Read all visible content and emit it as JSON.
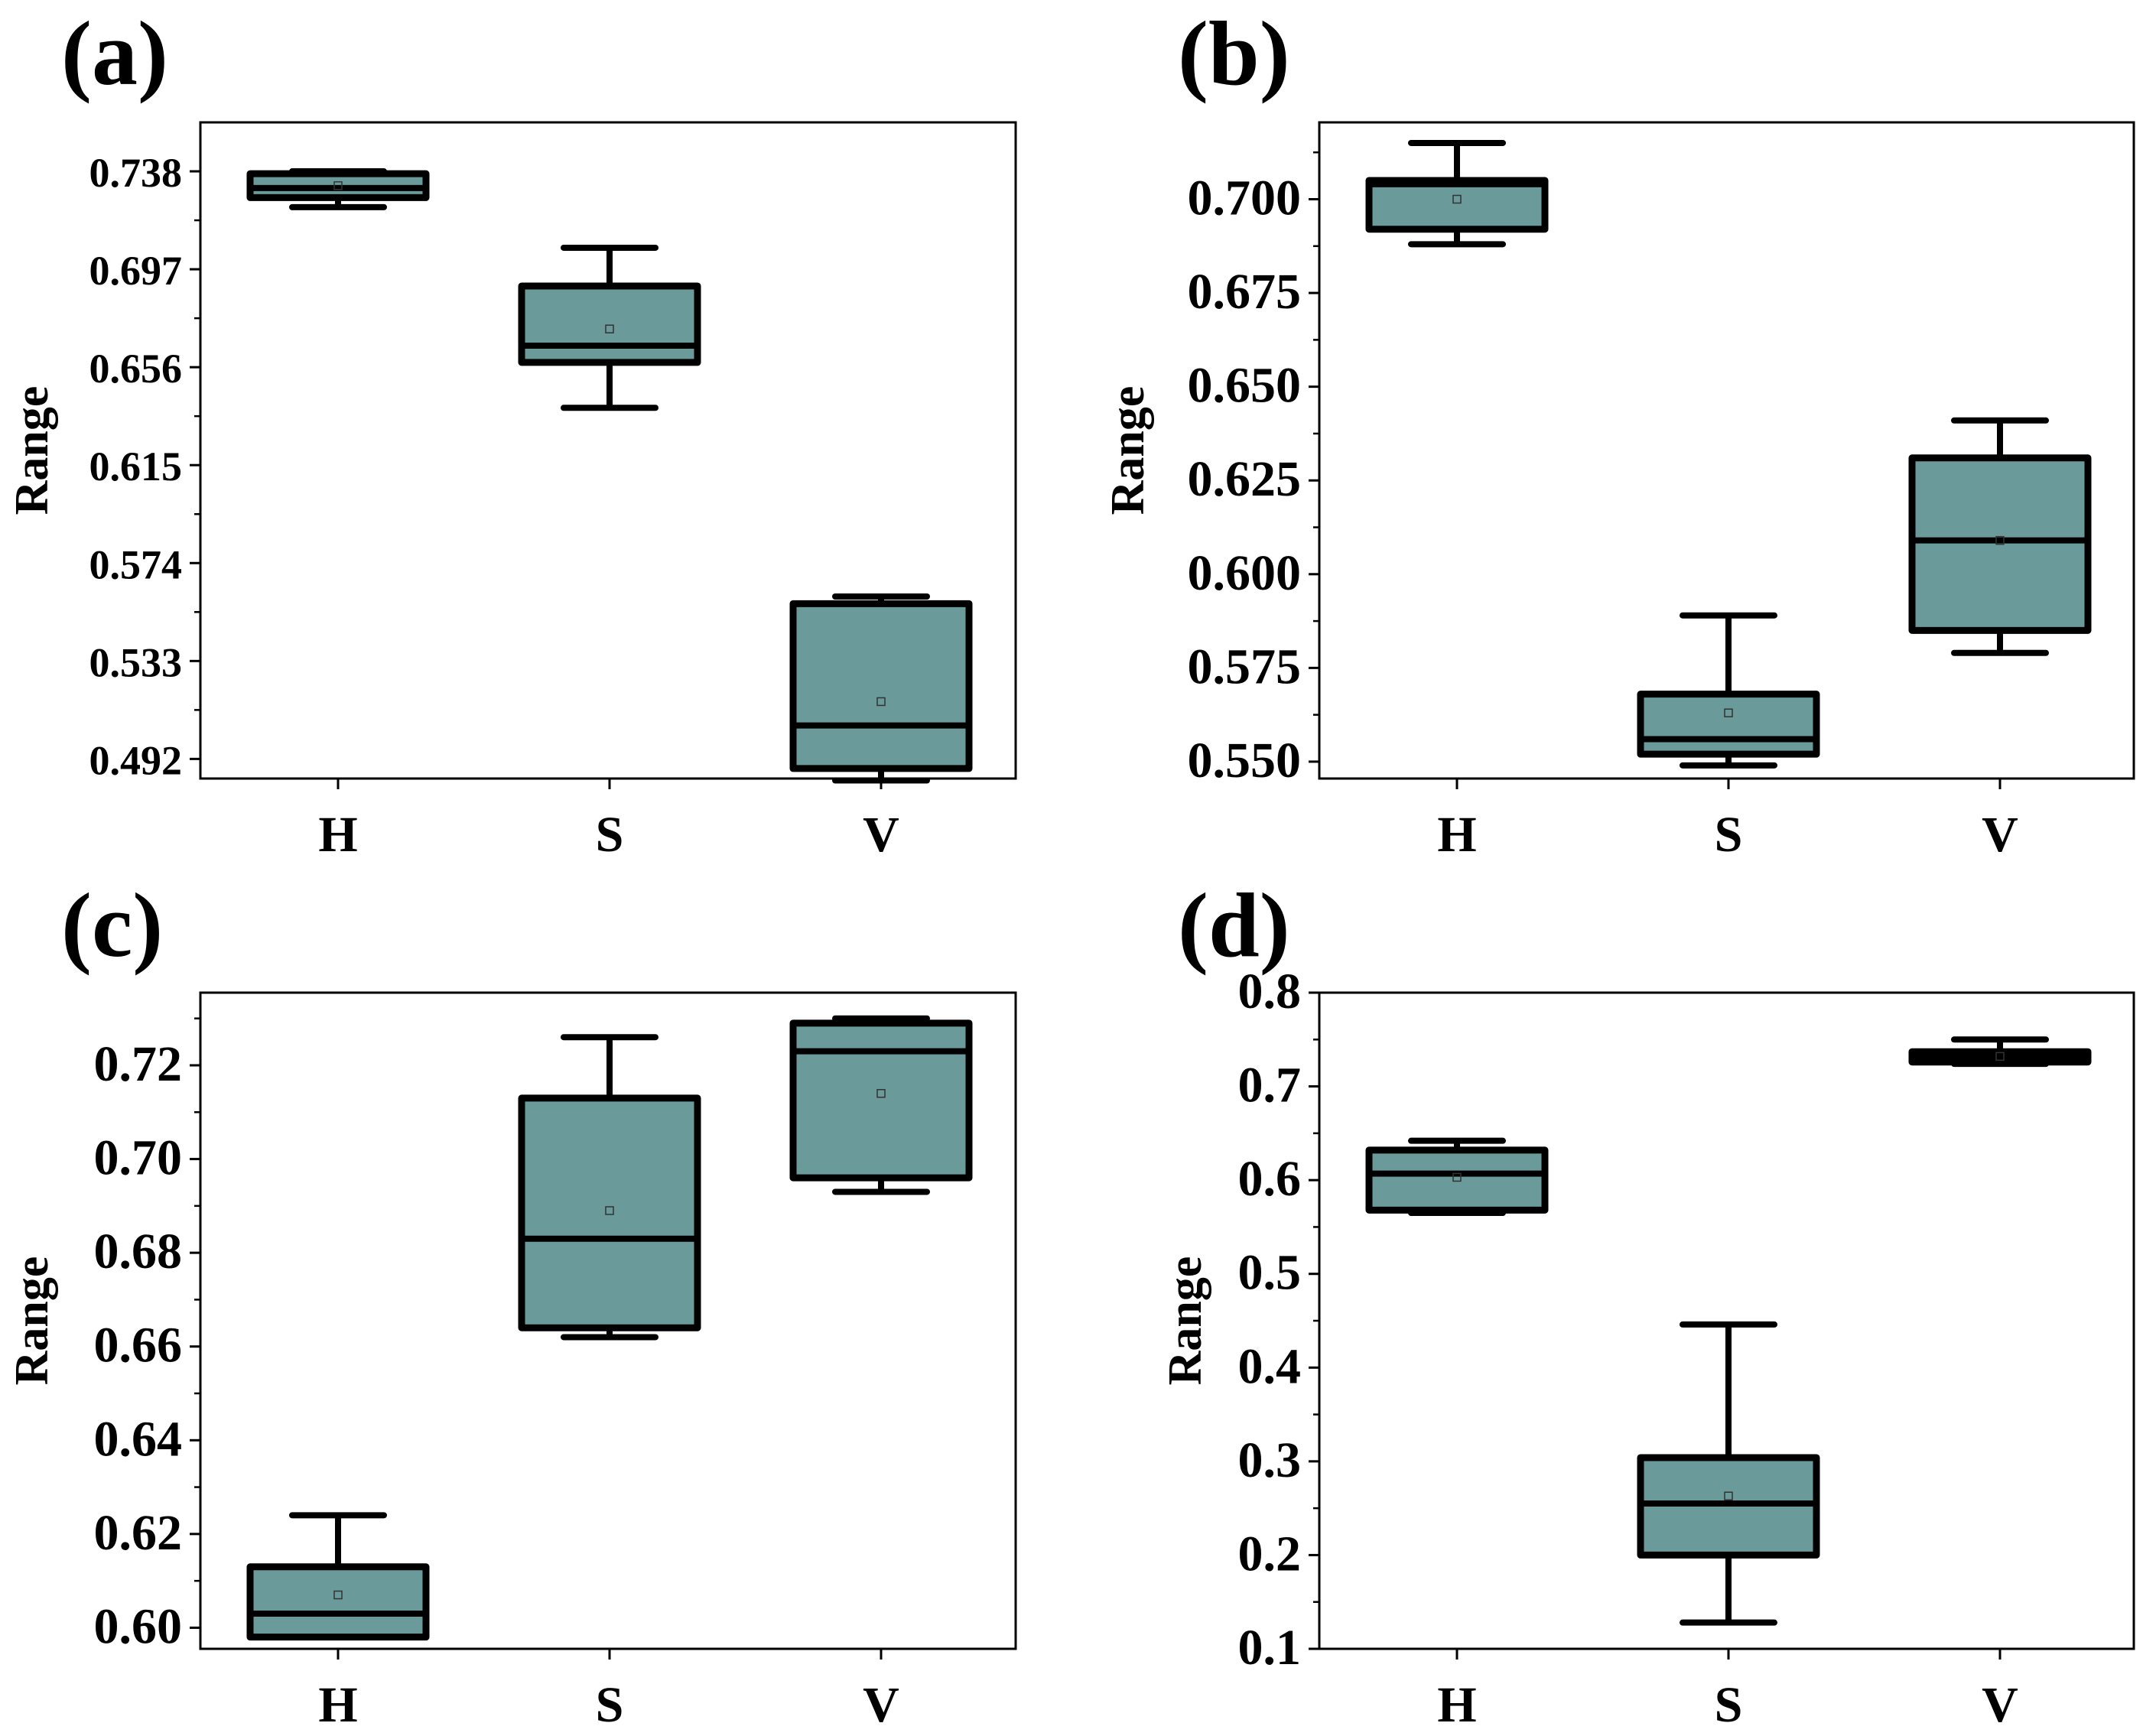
{
  "colors": {
    "box_fill": "#6a9a9a",
    "stroke": "#000000",
    "background": "#ffffff"
  },
  "chart_data": [
    {
      "type": "box",
      "panel_label": "(a)",
      "ylabel": "Range",
      "categories": [
        "H",
        "S",
        "V"
      ],
      "ylim": [
        0.4838,
        0.7585
      ],
      "yticks": [
        0.492,
        0.533,
        0.574,
        0.615,
        0.656,
        0.697,
        0.738
      ],
      "ytick_labels": [
        "0.492",
        "0.533",
        "0.574",
        "0.615",
        "0.656",
        "0.697",
        "0.738"
      ],
      "boxes": [
        {
          "category": "H",
          "whisker_low": 0.723,
          "q1": 0.727,
          "median": 0.731,
          "q3": 0.737,
          "whisker_high": 0.738,
          "mean": 0.732
        },
        {
          "category": "S",
          "whisker_low": 0.639,
          "q1": 0.658,
          "median": 0.665,
          "q3": 0.69,
          "whisker_high": 0.706,
          "mean": 0.672
        },
        {
          "category": "V",
          "whisker_low": 0.483,
          "q1": 0.488,
          "median": 0.506,
          "q3": 0.557,
          "whisker_high": 0.56,
          "mean": 0.516
        }
      ]
    },
    {
      "type": "box",
      "panel_label": "(b)",
      "ylabel": "Range",
      "categories": [
        "H",
        "S",
        "V"
      ],
      "ylim": [
        0.5455,
        0.7205
      ],
      "yticks": [
        0.55,
        0.575,
        0.6,
        0.625,
        0.65,
        0.675,
        0.7
      ],
      "ytick_labels": [
        "0.550",
        "0.575",
        "0.600",
        "0.625",
        "0.650",
        "0.675",
        "0.700"
      ],
      "boxes": [
        {
          "category": "H",
          "whisker_low": 0.688,
          "q1": 0.692,
          "median": 0.704,
          "q3": 0.705,
          "whisker_high": 0.715,
          "mean": 0.7
        },
        {
          "category": "S",
          "whisker_low": 0.549,
          "q1": 0.552,
          "median": 0.556,
          "q3": 0.568,
          "whisker_high": 0.589,
          "mean": 0.563
        },
        {
          "category": "V",
          "whisker_low": 0.579,
          "q1": 0.585,
          "median": 0.609,
          "q3": 0.631,
          "whisker_high": 0.641,
          "mean": 0.609
        }
      ]
    },
    {
      "type": "box",
      "panel_label": "(c)",
      "ylabel": "Range",
      "categories": [
        "H",
        "S",
        "V"
      ],
      "ylim": [
        0.5955,
        0.7355
      ],
      "yticks": [
        0.6,
        0.62,
        0.64,
        0.66,
        0.68,
        0.7,
        0.72
      ],
      "ytick_labels": [
        "0.60",
        "0.62",
        "0.64",
        "0.66",
        "0.68",
        "0.70",
        "0.72"
      ],
      "boxes": [
        {
          "category": "H",
          "whisker_low": 0.598,
          "q1": 0.598,
          "median": 0.603,
          "q3": 0.613,
          "whisker_high": 0.624,
          "mean": 0.607
        },
        {
          "category": "S",
          "whisker_low": 0.662,
          "q1": 0.664,
          "median": 0.683,
          "q3": 0.713,
          "whisker_high": 0.726,
          "mean": 0.689
        },
        {
          "category": "V",
          "whisker_low": 0.693,
          "q1": 0.696,
          "median": 0.723,
          "q3": 0.729,
          "whisker_high": 0.73,
          "mean": 0.714
        }
      ]
    },
    {
      "type": "box",
      "panel_label": "(d)",
      "ylabel": "Range",
      "categories": [
        "H",
        "S",
        "V"
      ],
      "ylim": [
        0.1,
        0.8
      ],
      "yticks": [
        0.1,
        0.2,
        0.3,
        0.4,
        0.5,
        0.6,
        0.7,
        0.8
      ],
      "ytick_labels": [
        "0.1",
        "0.2",
        "0.3",
        "0.4",
        "0.5",
        "0.6",
        "0.7",
        "0.8"
      ],
      "boxes": [
        {
          "category": "H",
          "whisker_low": 0.565,
          "q1": 0.568,
          "median": 0.607,
          "q3": 0.632,
          "whisker_high": 0.642,
          "mean": 0.603
        },
        {
          "category": "S",
          "whisker_low": 0.128,
          "q1": 0.2,
          "median": 0.255,
          "q3": 0.304,
          "whisker_high": 0.446,
          "mean": 0.263
        },
        {
          "category": "V",
          "whisker_low": 0.724,
          "q1": 0.726,
          "median": 0.732,
          "q3": 0.737,
          "whisker_high": 0.75,
          "mean": 0.732
        }
      ]
    }
  ]
}
